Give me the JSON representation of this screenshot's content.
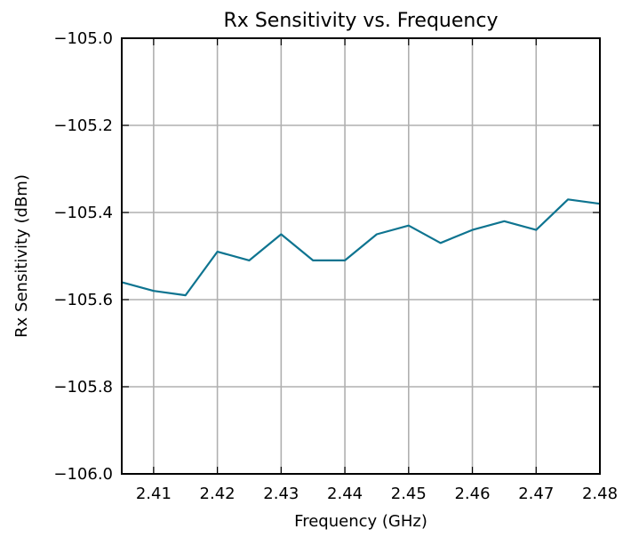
{
  "chart_data": {
    "type": "line",
    "title": "Rx Sensitivity vs. Frequency",
    "xlabel": "Frequency (GHz)",
    "ylabel": "Rx Sensitivity (dBm)",
    "xlim": [
      2.405,
      2.48
    ],
    "ylim": [
      -106.0,
      -105.0
    ],
    "xticks": [
      2.41,
      2.42,
      2.43,
      2.44,
      2.45,
      2.46,
      2.47,
      2.48
    ],
    "xtick_labels": [
      "2.41",
      "2.42",
      "2.43",
      "2.44",
      "2.45",
      "2.46",
      "2.47",
      "2.48"
    ],
    "yticks": [
      -106.0,
      -105.8,
      -105.6,
      -105.4,
      -105.2,
      -105.0
    ],
    "ytick_labels": [
      "−106.0",
      "−105.8",
      "−105.6",
      "−105.4",
      "−105.2",
      "−105.0"
    ],
    "grid": true,
    "line_color": "#0e7490",
    "grid_color": "#b0b0b0",
    "series": [
      {
        "x": [
          2.405,
          2.41,
          2.415,
          2.42,
          2.425,
          2.43,
          2.435,
          2.44,
          2.445,
          2.45,
          2.455,
          2.46,
          2.465,
          2.47,
          2.475,
          2.48
        ],
        "values": [
          -105.56,
          -105.58,
          -105.59,
          -105.49,
          -105.51,
          -105.45,
          -105.51,
          -105.51,
          -105.45,
          -105.43,
          -105.47,
          -105.44,
          -105.42,
          -105.44,
          -105.37,
          -105.38
        ]
      }
    ]
  }
}
